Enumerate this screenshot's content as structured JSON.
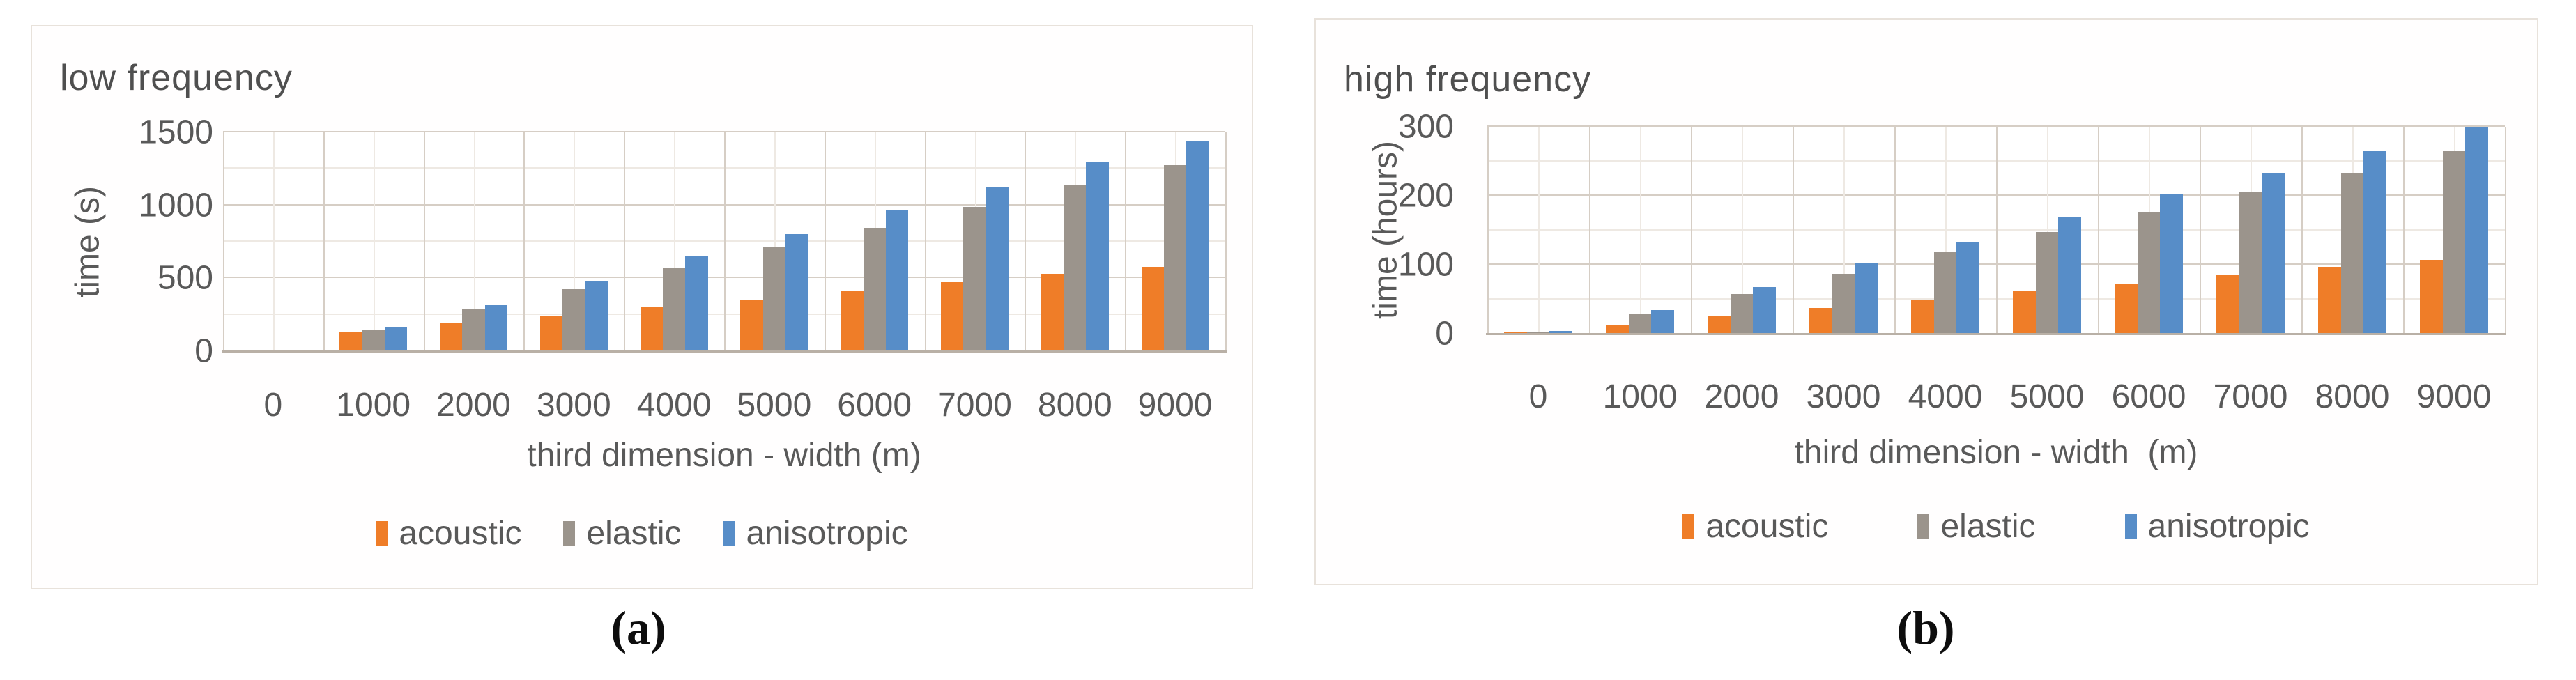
{
  "captions": {
    "a": "(a)",
    "b": "(b)"
  },
  "colors": {
    "acoustic": "#ef7d28",
    "elastic": "#9b948c",
    "anisotropic": "#578dc8",
    "text": "#595959",
    "grid_major": "#d6cec5",
    "grid_minor": "#eee9e3",
    "axis_line": "#b9b0a6",
    "panel_border": "#e8e2db"
  },
  "chart_data": [
    {
      "type": "bar",
      "title": "low frequency",
      "xlabel": "third dimension - width (m)",
      "ylabel": "time (s)",
      "ylim": [
        0,
        1500
      ],
      "yticks": [
        0,
        500,
        1000,
        1500
      ],
      "minor_gridline_step": 250,
      "grid": true,
      "legend_position": "bottom",
      "categories": [
        "0",
        "1000",
        "2000",
        "3000",
        "4000",
        "5000",
        "6000",
        "7000",
        "8000",
        "9000"
      ],
      "series": [
        {
          "name": "acoustic",
          "color": "#ef7d28",
          "values": [
            5,
            128,
            190,
            240,
            300,
            350,
            415,
            473,
            530,
            580
          ]
        },
        {
          "name": "elastic",
          "color": "#9b948c",
          "values": [
            6,
            141,
            287,
            426,
            574,
            715,
            848,
            991,
            1140,
            1274
          ]
        },
        {
          "name": "anisotropic",
          "color": "#578dc8",
          "values": [
            8,
            165,
            316,
            483,
            650,
            805,
            968,
            1127,
            1296,
            1443
          ]
        }
      ]
    },
    {
      "type": "bar",
      "title": "high frequency",
      "xlabel": "third dimension - width  (m)",
      "ylabel": "time (hours)",
      "ylim": [
        0,
        300
      ],
      "yticks": [
        0,
        100,
        200,
        300
      ],
      "minor_gridline_step": 50,
      "grid": true,
      "legend_position": "bottom",
      "categories": [
        "0",
        "1000",
        "2000",
        "3000",
        "4000",
        "5000",
        "6000",
        "7000",
        "8000",
        "9000"
      ],
      "series": [
        {
          "name": "acoustic",
          "color": "#ef7d28",
          "values": [
            3,
            13,
            26,
            37,
            50,
            62,
            73,
            85,
            97,
            107
          ]
        },
        {
          "name": "elastic",
          "color": "#9b948c",
          "values": [
            3,
            29,
            58,
            87,
            118,
            147,
            176,
            206,
            233,
            265
          ]
        },
        {
          "name": "anisotropic",
          "color": "#578dc8",
          "values": [
            4,
            34,
            68,
            102,
            133,
            169,
            202,
            232,
            265,
            300
          ]
        }
      ]
    }
  ]
}
